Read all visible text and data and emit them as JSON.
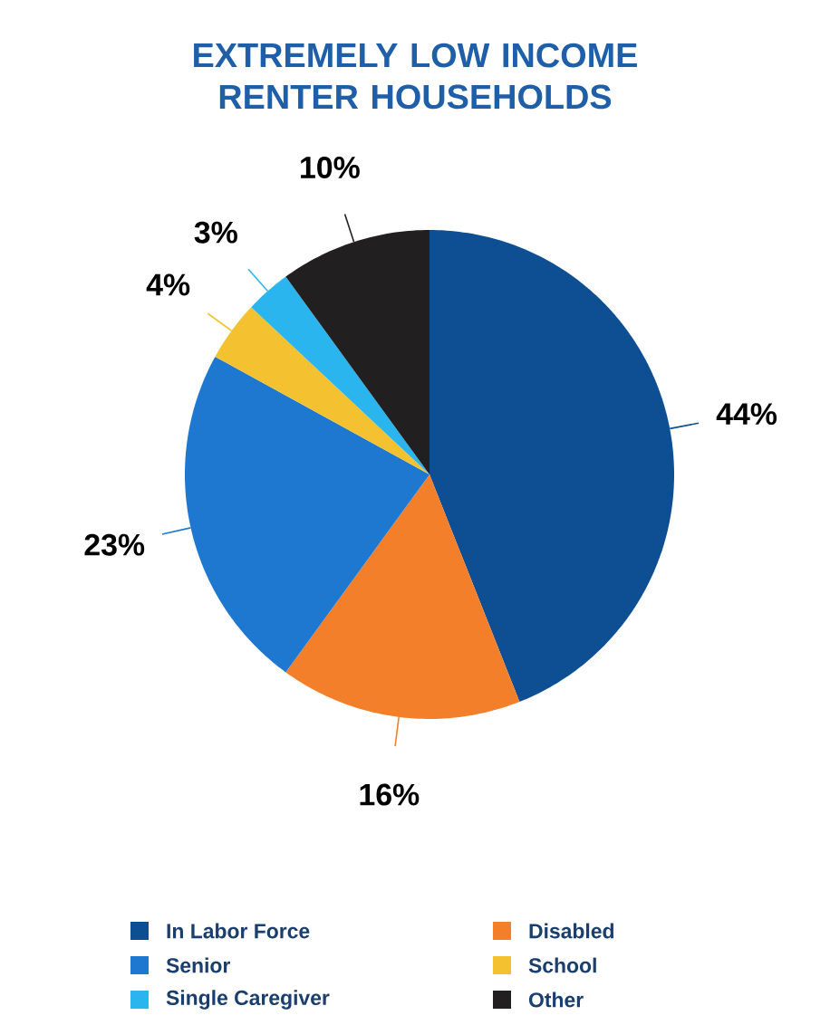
{
  "chart_data": {
    "type": "pie",
    "title": "EXTREMELY LOW INCOME RENTER HOUSEHOLDS",
    "categories": [
      "In Labor Force",
      "Disabled",
      "Senior",
      "School",
      "Single Caregiver",
      "Other"
    ],
    "values": [
      44,
      16,
      23,
      4,
      3,
      10
    ],
    "value_labels": [
      "44%",
      "16%",
      "23%",
      "4%",
      "3%",
      "10%"
    ],
    "colors": [
      "#0d4f92",
      "#f47f2a",
      "#1f78d0",
      "#f4c231",
      "#2bb5ef",
      "#221f20"
    ],
    "legend": "bottom"
  }
}
